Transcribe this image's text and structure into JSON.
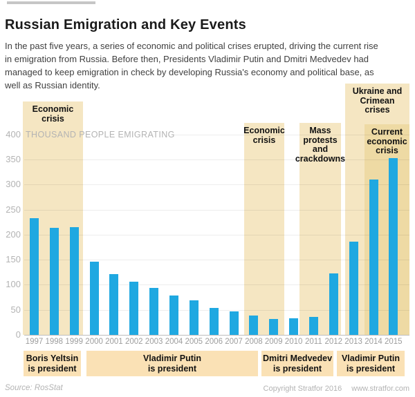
{
  "header": {
    "title": "Russian Emigration and Key Events",
    "intro": "In the past five years, a series of economic and political crises erupted, driving the current rise\nin emigration from Russia. Before then, Presidents Vladimir Putin and Dmitri Medvedev had\nmanaged to keep emigration in check by developing Russia's economy and political base, as\nwell as Russian identity."
  },
  "chart_data": {
    "type": "bar",
    "title": "Russian Emigration and Key Events",
    "ylabel": "THOUSAND PEOPLE EMIGRATING",
    "categories": [
      "1997",
      "1998",
      "1999",
      "2000",
      "2001",
      "2002",
      "2003",
      "2004",
      "2005",
      "2006",
      "2007",
      "2008",
      "2009",
      "2010",
      "2011",
      "2012",
      "2013",
      "2014",
      "2015"
    ],
    "values": [
      233,
      213,
      215,
      146,
      121,
      106,
      93,
      79,
      69,
      54,
      47,
      39,
      32,
      33,
      36,
      122,
      186,
      310,
      353
    ],
    "ylim": [
      0,
      400
    ],
    "yticks": [
      0,
      50,
      100,
      150,
      200,
      250,
      300,
      350,
      400
    ],
    "grid": true,
    "legend": "none",
    "bar_color": "#1fa8e1",
    "band_color": "#f5e6c2",
    "band_color_dark": "#eedaa4",
    "president_band_color": "#fae1b5",
    "event_bands": [
      {
        "label": "Economic crisis",
        "lines": [
          "Economic",
          "crisis"
        ],
        "years": "1997-1999"
      },
      {
        "label": "Economic crisis",
        "lines": [
          "Economic",
          "crisis"
        ],
        "years": "2008-2009"
      },
      {
        "label": "Mass protests and crackdowns",
        "lines": [
          "Mass",
          "protests",
          "and",
          "crackdowns"
        ],
        "years": "2011-2012"
      },
      {
        "label": "Ukraine and Crimean crises",
        "lines": [
          "Ukraine and",
          "Crimean",
          "crises"
        ],
        "years": "2013-2015"
      },
      {
        "label": "Current economic crisis",
        "lines": [
          "Current",
          "economic",
          "crisis"
        ],
        "years": "2014-2015"
      }
    ],
    "president_bands": [
      {
        "name": "Boris Yeltsin",
        "role": "is president",
        "years": "1997-1999"
      },
      {
        "name": "Vladimir Putin",
        "role": "is president",
        "years": "2000-2007"
      },
      {
        "name": "Dmitri Medvedev",
        "role": "is president",
        "years": "2008-2011"
      },
      {
        "name": "Vladimir Putin",
        "role": "is president",
        "years": "2012-2015"
      }
    ]
  },
  "footer": {
    "source": "Source: RosStat",
    "copyright": "Copyright Stratfor 2016",
    "website": "www.stratfor.com"
  }
}
